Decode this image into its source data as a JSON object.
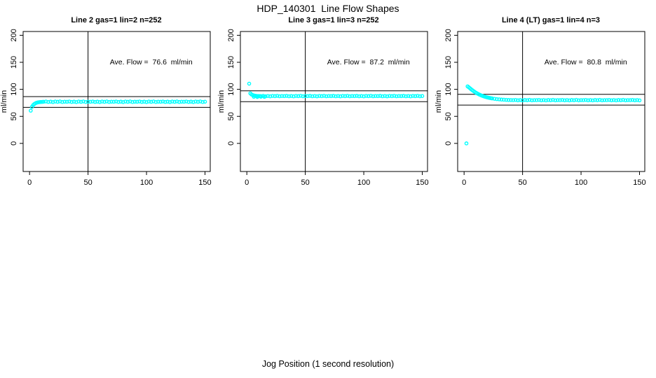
{
  "figure": {
    "title": "HDP_140301  Line Flow Shapes",
    "xlabel": "Jog Position (1 second resolution)",
    "point_color": "#00ffff",
    "axis_color": "#000000"
  },
  "chart_data": [
    {
      "type": "scatter",
      "title": "Line 2 gas=1 lin=2 n=252",
      "ylabel": "ml/min",
      "annotation": "Ave. Flow =  76.6  ml/min",
      "ave_flow_ml_min": 76.6,
      "xlim": [
        -5.5,
        154.5
      ],
      "ylim": [
        -52,
        207
      ],
      "xticks": [
        0,
        50,
        100,
        150
      ],
      "yticks": [
        0,
        50,
        100,
        150,
        200
      ],
      "vline_x": 50,
      "hlines_y": [
        86.6,
        66.6
      ],
      "grid": false,
      "points": [
        [
          1,
          60.5
        ],
        [
          2,
          67.5
        ],
        [
          3,
          70.8
        ],
        [
          4,
          72.8
        ],
        [
          5,
          74.2
        ],
        [
          6,
          75.2
        ],
        [
          7,
          75.8
        ],
        [
          8,
          76.2
        ],
        [
          9,
          76.5
        ],
        [
          10,
          76.7
        ],
        [
          11,
          76.8
        ],
        [
          12,
          77
        ],
        [
          14,
          77.5
        ],
        [
          16,
          76.7
        ],
        [
          18,
          77.2
        ],
        [
          20,
          76.5
        ],
        [
          22,
          77.4
        ],
        [
          24,
          76.9
        ],
        [
          26,
          77.6
        ],
        [
          28,
          76.6
        ],
        [
          30,
          77.1
        ],
        [
          32,
          77
        ],
        [
          34,
          77.5
        ],
        [
          36,
          76.7
        ],
        [
          38,
          77.2
        ],
        [
          40,
          76.5
        ],
        [
          42,
          77.4
        ],
        [
          44,
          76.9
        ],
        [
          46,
          77.6
        ],
        [
          48,
          76.6
        ],
        [
          50,
          77.1
        ],
        [
          52,
          77
        ],
        [
          54,
          77.5
        ],
        [
          56,
          76.7
        ],
        [
          58,
          77.2
        ],
        [
          60,
          76.5
        ],
        [
          62,
          77.4
        ],
        [
          64,
          76.9
        ],
        [
          66,
          77.6
        ],
        [
          68,
          76.6
        ],
        [
          70,
          77.1
        ],
        [
          72,
          77
        ],
        [
          74,
          77.5
        ],
        [
          76,
          76.7
        ],
        [
          78,
          77.2
        ],
        [
          80,
          76.5
        ],
        [
          82,
          77.4
        ],
        [
          84,
          76.9
        ],
        [
          86,
          77.6
        ],
        [
          88,
          76.6
        ],
        [
          90,
          77.1
        ],
        [
          92,
          77
        ],
        [
          94,
          77.5
        ],
        [
          96,
          76.7
        ],
        [
          98,
          77.2
        ],
        [
          100,
          76.5
        ],
        [
          102,
          77.4
        ],
        [
          104,
          76.9
        ],
        [
          106,
          77.6
        ],
        [
          108,
          76.6
        ],
        [
          110,
          77.1
        ],
        [
          112,
          77
        ],
        [
          114,
          77.5
        ],
        [
          116,
          76.7
        ],
        [
          118,
          77.2
        ],
        [
          120,
          76.5
        ],
        [
          122,
          77.4
        ],
        [
          124,
          76.9
        ],
        [
          126,
          77.6
        ],
        [
          128,
          76.6
        ],
        [
          130,
          77.1
        ],
        [
          132,
          77
        ],
        [
          134,
          77.5
        ],
        [
          136,
          76.7
        ],
        [
          138,
          77.2
        ],
        [
          140,
          76.5
        ],
        [
          142,
          77.4
        ],
        [
          144,
          76.9
        ],
        [
          146,
          77.6
        ],
        [
          148,
          76.6
        ],
        [
          150,
          77.1
        ]
      ]
    },
    {
      "type": "scatter",
      "title": "Line 3 gas=1 lin=3 n=252",
      "ylabel": "ml/min",
      "annotation": "Ave. Flow =  87.2  ml/min",
      "ave_flow_ml_min": 87.2,
      "xlim": [
        -5.5,
        154.5
      ],
      "ylim": [
        -52,
        207
      ],
      "xticks": [
        0,
        50,
        100,
        150
      ],
      "yticks": [
        0,
        50,
        100,
        150,
        200
      ],
      "vline_x": 50,
      "hlines_y": [
        97.2,
        77.2
      ],
      "grid": false,
      "points": [
        [
          2,
          110.5
        ],
        [
          3,
          92.5
        ],
        [
          4,
          90.5
        ],
        [
          5,
          89.4
        ],
        [
          6,
          88.7
        ],
        [
          7,
          88.2
        ],
        [
          8,
          87.9
        ],
        [
          9,
          87.7
        ],
        [
          10,
          87.6
        ],
        [
          11,
          87.5
        ],
        [
          6,
          86.2
        ],
        [
          9,
          85.9
        ],
        [
          12,
          86.3
        ],
        [
          15,
          86.1
        ],
        [
          12,
          87.5
        ],
        [
          14,
          87.9
        ],
        [
          16,
          87.2
        ],
        [
          18,
          87.7
        ],
        [
          20,
          87.1
        ],
        [
          22,
          87.8
        ],
        [
          24,
          87.4
        ],
        [
          26,
          88
        ],
        [
          28,
          87.2
        ],
        [
          30,
          87.6
        ],
        [
          32,
          87.5
        ],
        [
          34,
          87.9
        ],
        [
          36,
          87.2
        ],
        [
          38,
          87.7
        ],
        [
          40,
          87.1
        ],
        [
          42,
          87.8
        ],
        [
          44,
          87.4
        ],
        [
          46,
          88
        ],
        [
          48,
          87.2
        ],
        [
          50,
          87.6
        ],
        [
          52,
          87.5
        ],
        [
          54,
          87.9
        ],
        [
          56,
          87.2
        ],
        [
          58,
          87.7
        ],
        [
          60,
          87.1
        ],
        [
          62,
          87.8
        ],
        [
          64,
          87.4
        ],
        [
          66,
          88
        ],
        [
          68,
          87.2
        ],
        [
          70,
          87.6
        ],
        [
          72,
          87.5
        ],
        [
          74,
          87.9
        ],
        [
          76,
          87.2
        ],
        [
          78,
          87.7
        ],
        [
          80,
          87.1
        ],
        [
          82,
          87.8
        ],
        [
          84,
          87.4
        ],
        [
          86,
          88
        ],
        [
          88,
          87.2
        ],
        [
          90,
          87.6
        ],
        [
          92,
          87.5
        ],
        [
          94,
          87.9
        ],
        [
          96,
          87.2
        ],
        [
          98,
          87.7
        ],
        [
          100,
          87.1
        ],
        [
          102,
          87.8
        ],
        [
          104,
          87.4
        ],
        [
          106,
          88
        ],
        [
          108,
          87.2
        ],
        [
          110,
          87.6
        ],
        [
          112,
          87.5
        ],
        [
          114,
          87.9
        ],
        [
          116,
          87.2
        ],
        [
          118,
          87.7
        ],
        [
          120,
          87.1
        ],
        [
          122,
          87.8
        ],
        [
          124,
          87.4
        ],
        [
          126,
          88
        ],
        [
          128,
          87.2
        ],
        [
          130,
          87.6
        ],
        [
          132,
          87.5
        ],
        [
          134,
          87.9
        ],
        [
          136,
          87.2
        ],
        [
          138,
          87.7
        ],
        [
          140,
          87.1
        ],
        [
          142,
          87.8
        ],
        [
          144,
          87.4
        ],
        [
          146,
          88
        ],
        [
          148,
          87.2
        ],
        [
          150,
          87.6
        ]
      ]
    },
    {
      "type": "scatter",
      "title": "Line 4 (LT) gas=1 lin=4 n=3",
      "ylabel": "ml/min",
      "annotation": "Ave. Flow =  80.8  ml/min",
      "ave_flow_ml_min": 80.8,
      "xlim": [
        -5.5,
        154.5
      ],
      "ylim": [
        -52,
        207
      ],
      "xticks": [
        0,
        50,
        100,
        150
      ],
      "yticks": [
        0,
        50,
        100,
        150,
        200
      ],
      "vline_x": 50,
      "hlines_y": [
        90.8,
        70.8
      ],
      "grid": false,
      "points": [
        [
          2,
          0
        ],
        [
          3,
          105.5
        ],
        [
          4,
          103.8
        ],
        [
          5,
          102
        ],
        [
          6,
          100.2
        ],
        [
          7,
          98.5
        ],
        [
          8,
          96.9
        ],
        [
          9,
          95.4
        ],
        [
          10,
          94
        ],
        [
          11,
          92.7
        ],
        [
          12,
          91.5
        ],
        [
          13,
          90.4
        ],
        [
          14,
          89.4
        ],
        [
          15,
          88.5
        ],
        [
          16,
          87.7
        ],
        [
          17,
          86.9
        ],
        [
          18,
          86.2
        ],
        [
          19,
          85.6
        ],
        [
          20,
          85
        ],
        [
          21,
          84.5
        ],
        [
          22,
          84
        ],
        [
          23,
          83.6
        ],
        [
          24,
          83.2
        ],
        [
          26,
          82.5
        ],
        [
          28,
          81.9
        ],
        [
          30,
          81.5
        ],
        [
          32,
          81.1
        ],
        [
          34,
          80.8
        ],
        [
          36,
          80.5
        ],
        [
          38,
          80.3
        ],
        [
          40,
          80.2
        ],
        [
          42,
          80
        ],
        [
          44,
          80.4
        ],
        [
          46,
          79.7
        ],
        [
          48,
          80.2
        ],
        [
          50,
          79.6
        ],
        [
          52,
          80.3
        ],
        [
          54,
          79.9
        ],
        [
          56,
          80.5
        ],
        [
          58,
          79.7
        ],
        [
          60,
          80.1
        ],
        [
          62,
          80
        ],
        [
          64,
          80.4
        ],
        [
          66,
          79.7
        ],
        [
          68,
          80.2
        ],
        [
          70,
          79.6
        ],
        [
          72,
          80.3
        ],
        [
          74,
          79.9
        ],
        [
          76,
          80.5
        ],
        [
          78,
          79.7
        ],
        [
          80,
          80.1
        ],
        [
          82,
          80
        ],
        [
          84,
          80.4
        ],
        [
          86,
          79.7
        ],
        [
          88,
          80.2
        ],
        [
          90,
          79.6
        ],
        [
          92,
          80.3
        ],
        [
          94,
          79.9
        ],
        [
          96,
          80.5
        ],
        [
          98,
          79.7
        ],
        [
          100,
          80.1
        ],
        [
          102,
          80
        ],
        [
          104,
          80.4
        ],
        [
          106,
          79.7
        ],
        [
          108,
          80.2
        ],
        [
          110,
          79.6
        ],
        [
          112,
          80.3
        ],
        [
          114,
          79.9
        ],
        [
          116,
          80.5
        ],
        [
          118,
          79.7
        ],
        [
          120,
          80.1
        ],
        [
          122,
          80
        ],
        [
          124,
          80.4
        ],
        [
          126,
          79.7
        ],
        [
          128,
          80.2
        ],
        [
          130,
          79.6
        ],
        [
          132,
          80.3
        ],
        [
          134,
          79.9
        ],
        [
          136,
          80.5
        ],
        [
          138,
          79.7
        ],
        [
          140,
          80.1
        ],
        [
          142,
          80
        ],
        [
          144,
          80.4
        ],
        [
          146,
          79.7
        ],
        [
          148,
          80.2
        ],
        [
          150,
          79.6
        ]
      ]
    }
  ]
}
